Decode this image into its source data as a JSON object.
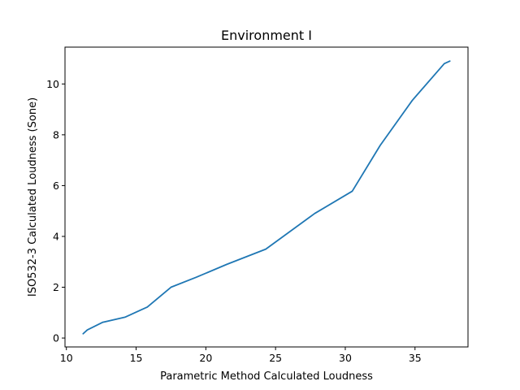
{
  "chart_data": {
    "type": "line",
    "title": "Environment I",
    "xlabel": "Parametric Method Calculated Loudness",
    "ylabel": "ISO532-3 Calculated Loudness (Sone)",
    "xlim": [
      9.9,
      38.8
    ],
    "ylim": [
      -0.35,
      11.45
    ],
    "xticks": [
      10,
      15,
      20,
      25,
      30,
      35
    ],
    "yticks": [
      0,
      2,
      4,
      6,
      8,
      10
    ],
    "grid": false,
    "series": [
      {
        "color": "#1f77b4",
        "x": [
          11.2,
          11.5,
          12.6,
          14.2,
          15.8,
          17.5,
          19.3,
          21.5,
          24.3,
          27.8,
          30.5,
          32.5,
          34.8,
          37.1,
          37.5
        ],
        "y": [
          0.17,
          0.32,
          0.62,
          0.82,
          1.22,
          2.0,
          2.39,
          2.9,
          3.5,
          4.9,
          5.78,
          7.58,
          9.35,
          10.8,
          10.9
        ]
      }
    ]
  }
}
